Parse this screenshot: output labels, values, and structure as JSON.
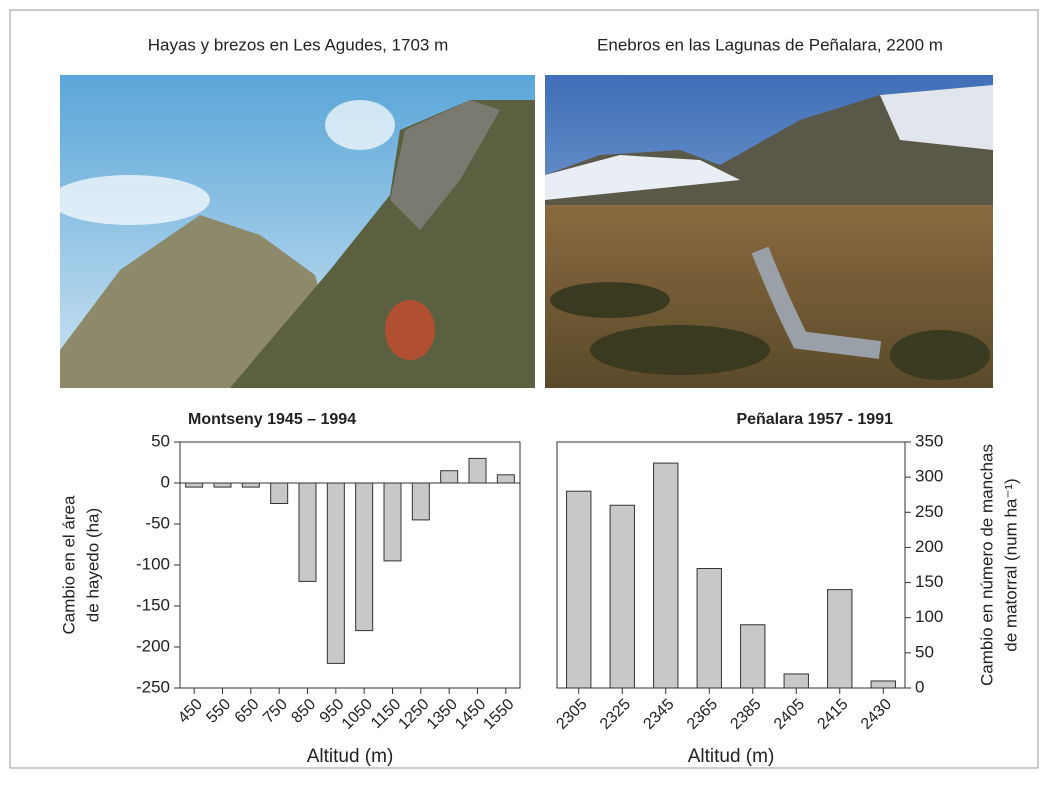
{
  "photos": [
    {
      "caption": "Hayas y brezos en Les Agudes, 1703 m"
    },
    {
      "caption": "Enebros en las Lagunas de Peñalara, 2200 m"
    }
  ],
  "chart_data": [
    {
      "type": "bar",
      "title": "Montseny  1945 – 1994",
      "xlabel": "Altitud (m)",
      "ylabel": [
        "Cambio en el área",
        "de hayedo (ha)"
      ],
      "categories": [
        "450",
        "550",
        "650",
        "750",
        "850",
        "950",
        "1050",
        "1150",
        "1250",
        "1350",
        "1450",
        "1550"
      ],
      "values": [
        -5,
        -5,
        -5,
        -25,
        -120,
        -220,
        -180,
        -95,
        -45,
        15,
        30,
        10
      ],
      "color": "#c8c8c8",
      "ylim": [
        -250,
        50
      ],
      "yticks": [
        -250,
        -200,
        -150,
        -100,
        -50,
        0,
        50
      ],
      "yaxis": "left"
    },
    {
      "type": "bar",
      "title": "Peñalara 1957 - 1991",
      "xlabel": "Altitud (m)",
      "ylabel": [
        "Cambio en número de manchas",
        "de matorral (num ha⁻¹)"
      ],
      "categories": [
        "2305",
        "2325",
        "2345",
        "2365",
        "2385",
        "2405",
        "2415",
        "2430"
      ],
      "values": [
        280,
        260,
        320,
        170,
        90,
        20,
        140,
        10
      ],
      "color": "#c8c8c8",
      "ylim": [
        0,
        350
      ],
      "yticks": [
        0,
        50,
        100,
        150,
        200,
        250,
        300,
        350
      ],
      "yaxis": "right"
    }
  ]
}
